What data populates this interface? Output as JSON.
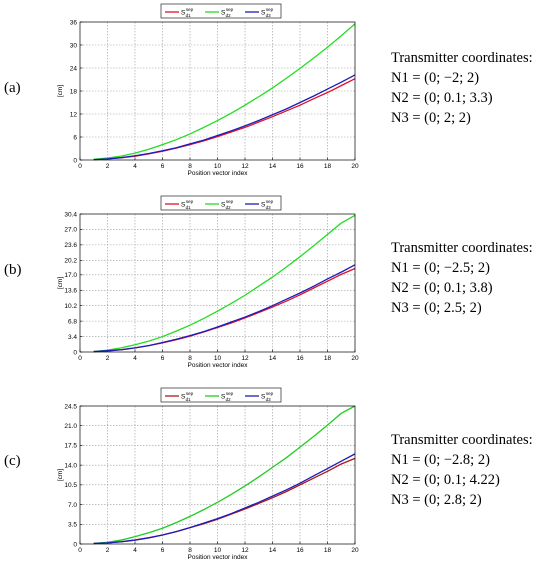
{
  "panels": [
    {
      "label": "(a)",
      "coords_title": "Transmitter coordinates:",
      "coords": [
        "N1 = (0; −2; 2)",
        "N2 = (0; 0.1; 3.3)",
        "N3 = (0; 2; 2)"
      ]
    },
    {
      "label": "(b)",
      "coords_title": "Transmitter coordinates:",
      "coords": [
        "N1 = (0; −2.5; 2)",
        "N2 = (0; 0.1; 3.8)",
        "N3 = (0; 2.5; 2)"
      ]
    },
    {
      "label": "(c)",
      "coords_title": "Transmitter coordinates:",
      "coords": [
        "N1 = (0; −2.8; 2)",
        "N2 = (0; 0.1; 4.22)",
        "N3 = (0; 2.8; 2)"
      ]
    }
  ],
  "chart_data": [
    {
      "type": "line",
      "xlabel": "Position vector index",
      "ylabel": "[cm]",
      "xlim": [
        0,
        20
      ],
      "ylim": [
        0,
        36
      ],
      "xticks": [
        "0",
        "2",
        "4",
        "6",
        "8",
        "10",
        "12",
        "14",
        "16",
        "18",
        "20"
      ],
      "yticks": [
        "0",
        "6",
        "12",
        "18",
        "24",
        "30",
        "36"
      ],
      "grid": true,
      "legend_position": "top-center",
      "x": [
        1,
        2,
        3,
        4,
        5,
        6,
        7,
        8,
        9,
        10,
        11,
        12,
        13,
        14,
        15,
        16,
        17,
        18,
        19,
        20
      ],
      "series": [
        {
          "name": "S",
          "sup": "sep",
          "sub": "d1",
          "color": "#e0102a",
          "values": [
            0.1,
            0.3,
            0.6,
            1.0,
            1.6,
            2.3,
            3.1,
            4.0,
            5.0,
            6.1,
            7.3,
            8.5,
            9.9,
            11.3,
            12.8,
            14.3,
            16.0,
            17.6,
            19.4,
            21.2
          ]
        },
        {
          "name": "S",
          "sup": "sep",
          "sub": "d2",
          "color": "#22dd22",
          "values": [
            0.2,
            0.5,
            1.0,
            1.8,
            2.8,
            4.0,
            5.3,
            6.8,
            8.5,
            10.3,
            12.2,
            14.3,
            16.5,
            18.8,
            21.3,
            23.9,
            26.6,
            29.4,
            32.4,
            35.5
          ]
        },
        {
          "name": "S",
          "sup": "sep",
          "sub": "d3",
          "color": "#1c1cb8",
          "values": [
            0.1,
            0.3,
            0.6,
            1.1,
            1.7,
            2.4,
            3.2,
            4.2,
            5.2,
            6.4,
            7.6,
            8.9,
            10.3,
            11.8,
            13.3,
            15.0,
            16.7,
            18.5,
            20.3,
            22.2
          ]
        }
      ]
    },
    {
      "type": "line",
      "xlabel": "Position vector index",
      "ylabel": "[cm]",
      "xlim": [
        0,
        20
      ],
      "ylim": [
        0,
        30.4
      ],
      "xticks": [
        "0",
        "2",
        "4",
        "6",
        "8",
        "10",
        "12",
        "14",
        "16",
        "18",
        "20"
      ],
      "yticks": [
        "0",
        "3.4",
        "6.8",
        "10.2",
        "13.6",
        "17.0",
        "20.2",
        "23.6",
        "27.0",
        "30.4"
      ],
      "grid": true,
      "legend_position": "top-center",
      "x": [
        1,
        2,
        3,
        4,
        5,
        6,
        7,
        8,
        9,
        10,
        11,
        12,
        13,
        14,
        15,
        16,
        17,
        18,
        19,
        20
      ],
      "series": [
        {
          "name": "S",
          "sup": "sep",
          "sub": "d1",
          "color": "#e0102a",
          "values": [
            0.1,
            0.2,
            0.5,
            0.9,
            1.4,
            2.0,
            2.7,
            3.5,
            4.4,
            5.4,
            6.4,
            7.5,
            8.7,
            9.9,
            11.2,
            12.6,
            14.1,
            15.6,
            17.1,
            18.4
          ]
        },
        {
          "name": "S",
          "sup": "sep",
          "sub": "d2",
          "color": "#22dd22",
          "values": [
            0.1,
            0.4,
            0.9,
            1.6,
            2.4,
            3.4,
            4.6,
            5.9,
            7.4,
            9.0,
            10.7,
            12.5,
            14.5,
            16.5,
            18.7,
            21.0,
            23.4,
            25.9,
            28.4,
            30.1
          ]
        },
        {
          "name": "S",
          "sup": "sep",
          "sub": "d3",
          "color": "#1c1cb8",
          "values": [
            0.1,
            0.3,
            0.5,
            0.9,
            1.4,
            2.1,
            2.8,
            3.6,
            4.5,
            5.5,
            6.6,
            7.7,
            8.9,
            10.2,
            11.6,
            13.0,
            14.5,
            16.1,
            17.6,
            19.2
          ]
        }
      ]
    },
    {
      "type": "line",
      "xlabel": "Position vector index",
      "ylabel": "[cm]",
      "xlim": [
        0,
        20
      ],
      "ylim": [
        0,
        24.5
      ],
      "xticks": [
        "0",
        "2",
        "4",
        "6",
        "8",
        "10",
        "12",
        "14",
        "16",
        "18",
        "20"
      ],
      "yticks": [
        "0",
        "3.5",
        "7.0",
        "10.5",
        "14.0",
        "17.5",
        "21.0",
        "24.5"
      ],
      "grid": true,
      "legend_position": "top-center",
      "x": [
        1,
        2,
        3,
        4,
        5,
        6,
        7,
        8,
        9,
        10,
        11,
        12,
        13,
        14,
        15,
        16,
        17,
        18,
        19,
        20
      ],
      "series": [
        {
          "name": "S",
          "sup": "sep",
          "sub": "d1",
          "color": "#b01818",
          "values": [
            0.1,
            0.2,
            0.4,
            0.7,
            1.1,
            1.6,
            2.2,
            2.9,
            3.6,
            4.4,
            5.3,
            6.2,
            7.2,
            8.2,
            9.3,
            10.5,
            11.7,
            12.9,
            14.2,
            15.2
          ]
        },
        {
          "name": "S",
          "sup": "sep",
          "sub": "d2",
          "color": "#22cc22",
          "values": [
            0.1,
            0.3,
            0.7,
            1.3,
            2.0,
            2.8,
            3.8,
            4.9,
            6.1,
            7.4,
            8.8,
            10.3,
            11.9,
            13.6,
            15.3,
            17.2,
            19.1,
            21.1,
            23.2,
            24.5
          ]
        },
        {
          "name": "S",
          "sup": "sep",
          "sub": "d3",
          "color": "#1c1cb8",
          "values": [
            0.1,
            0.2,
            0.4,
            0.7,
            1.1,
            1.6,
            2.2,
            2.9,
            3.7,
            4.5,
            5.4,
            6.4,
            7.4,
            8.5,
            9.6,
            10.8,
            12.1,
            13.4,
            14.7,
            16.0
          ]
        }
      ]
    }
  ]
}
